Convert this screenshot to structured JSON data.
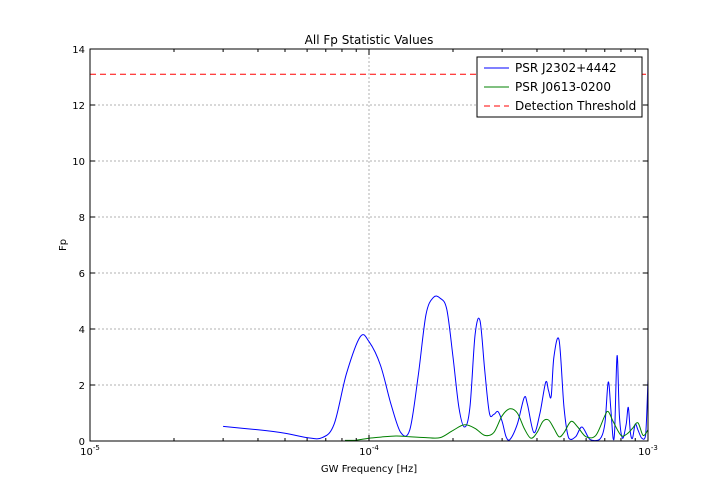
{
  "chart_data": {
    "type": "line",
    "title": "All Fp Statistic Values",
    "xlabel": "GW Frequency [Hz]",
    "ylabel": "Fp",
    "xscale": "log",
    "xlim": [
      1e-05,
      0.001
    ],
    "ylim": [
      0,
      14
    ],
    "xticks": [
      {
        "value": 1e-05,
        "base": "10",
        "exp": "-5"
      },
      {
        "value": 0.0001,
        "base": "10",
        "exp": "-4"
      },
      {
        "value": 0.001,
        "base": "10",
        "exp": "-3"
      }
    ],
    "yticks": [
      0,
      2,
      4,
      6,
      8,
      10,
      12,
      14
    ],
    "grid": true,
    "legend_position": "top-right",
    "threshold": {
      "name": "Detection Threshold",
      "value": 13.1,
      "color": "#ff0000",
      "style": "dashed"
    },
    "series": [
      {
        "name": "PSR J2302+4442",
        "color": "#0000ff",
        "points": [
          [
            3e-05,
            0.52
          ],
          [
            4e-05,
            0.4
          ],
          [
            5e-05,
            0.28
          ],
          [
            6e-05,
            0.12
          ],
          [
            6.8e-05,
            0.12
          ],
          [
            7.5e-05,
            0.6
          ],
          [
            8.3e-05,
            2.4
          ],
          [
            9.3e-05,
            3.72
          ],
          [
            0.0001,
            3.55
          ],
          [
            0.00011,
            2.7
          ],
          [
            0.00012,
            1.3
          ],
          [
            0.00013,
            0.3
          ],
          [
            0.00014,
            0.4
          ],
          [
            0.00015,
            2.3
          ],
          [
            0.00016,
            4.5
          ],
          [
            0.00017,
            5.12
          ],
          [
            0.00018,
            5.1
          ],
          [
            0.00019,
            4.7
          ],
          [
            0.0002,
            3.0
          ],
          [
            0.00021,
            1.2
          ],
          [
            0.00022,
            0.5
          ],
          [
            0.00023,
            1.2
          ],
          [
            0.00024,
            3.8
          ],
          [
            0.00025,
            4.3
          ],
          [
            0.00026,
            2.5
          ],
          [
            0.00027,
            1.0
          ],
          [
            0.00028,
            0.95
          ],
          [
            0.00029,
            1.05
          ],
          [
            0.0003,
            0.7
          ],
          [
            0.00031,
            0.15
          ],
          [
            0.00032,
            0.05
          ],
          [
            0.00034,
            0.6
          ],
          [
            0.00036,
            1.55
          ],
          [
            0.00037,
            1.3
          ],
          [
            0.00039,
            0.3
          ],
          [
            0.00041,
            1.0
          ],
          [
            0.00043,
            2.1
          ],
          [
            0.00044,
            1.8
          ],
          [
            0.00045,
            1.6
          ],
          [
            0.00046,
            3.0
          ],
          [
            0.00048,
            3.6
          ],
          [
            0.0005,
            1.2
          ],
          [
            0.00052,
            0.1
          ],
          [
            0.00055,
            0.15
          ],
          [
            0.00058,
            0.5
          ],
          [
            0.00062,
            0.05
          ],
          [
            0.00067,
            0.05
          ],
          [
            0.0007,
            0.6
          ],
          [
            0.00072,
            2.1
          ],
          [
            0.000735,
            1.2
          ],
          [
            0.00075,
            0.1
          ],
          [
            0.00076,
            0.4
          ],
          [
            0.000775,
            3.05
          ],
          [
            0.00079,
            0.9
          ],
          [
            0.00081,
            0.1
          ],
          [
            0.000835,
            0.6
          ],
          [
            0.00085,
            1.2
          ],
          [
            0.000865,
            0.3
          ],
          [
            0.00088,
            0.1
          ],
          [
            0.0009,
            0.6
          ],
          [
            0.00092,
            0.4
          ],
          [
            0.00095,
            0.1
          ],
          [
            0.00098,
            0.2
          ],
          [
            0.001,
            2.2
          ]
        ]
      },
      {
        "name": "PSR J0613-0200",
        "color": "#008000",
        "points": [
          [
            8.2e-05,
            0.02
          ],
          [
            9e-05,
            0.03
          ],
          [
            0.0001,
            0.1
          ],
          [
            0.00011,
            0.14
          ],
          [
            0.000125,
            0.18
          ],
          [
            0.00014,
            0.15
          ],
          [
            0.00016,
            0.12
          ],
          [
            0.00018,
            0.12
          ],
          [
            0.0002,
            0.38
          ],
          [
            0.00022,
            0.58
          ],
          [
            0.00024,
            0.45
          ],
          [
            0.00026,
            0.2
          ],
          [
            0.00028,
            0.3
          ],
          [
            0.0003,
            0.9
          ],
          [
            0.00032,
            1.15
          ],
          [
            0.00034,
            1.0
          ],
          [
            0.00036,
            0.45
          ],
          [
            0.00038,
            0.1
          ],
          [
            0.0004,
            0.3
          ],
          [
            0.00042,
            0.7
          ],
          [
            0.00044,
            0.75
          ],
          [
            0.00046,
            0.45
          ],
          [
            0.00048,
            0.15
          ],
          [
            0.0005,
            0.3
          ],
          [
            0.00053,
            0.7
          ],
          [
            0.00056,
            0.5
          ],
          [
            0.0006,
            0.15
          ],
          [
            0.00065,
            0.2
          ],
          [
            0.0007,
            0.9
          ],
          [
            0.00072,
            1.05
          ],
          [
            0.00075,
            0.7
          ],
          [
            0.0008,
            0.2
          ],
          [
            0.00084,
            0.25
          ],
          [
            0.00088,
            0.45
          ],
          [
            0.00092,
            0.65
          ],
          [
            0.00096,
            0.2
          ],
          [
            0.001,
            0.4
          ]
        ]
      }
    ]
  }
}
